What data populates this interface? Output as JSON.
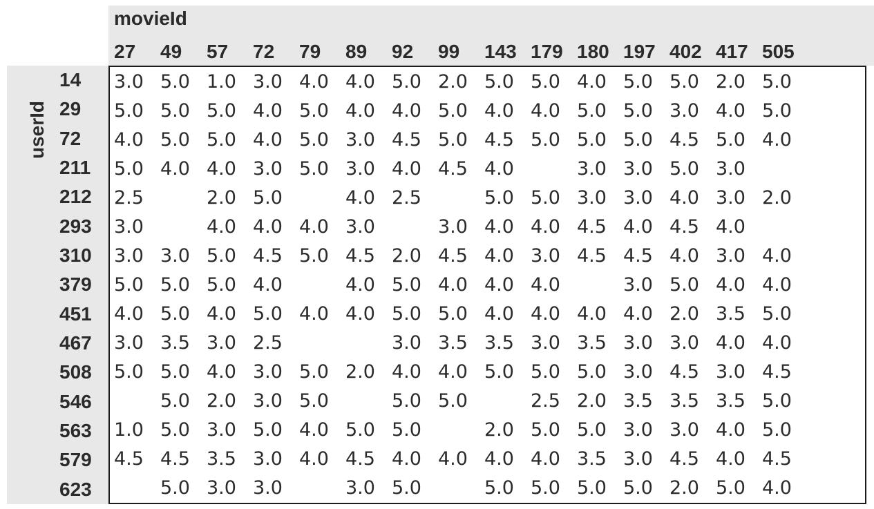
{
  "chart_data": {
    "type": "table",
    "title": "",
    "col_axis_label": "movieId",
    "row_axis_label": "userId",
    "columns": [
      "27",
      "49",
      "57",
      "72",
      "79",
      "89",
      "92",
      "99",
      "143",
      "179",
      "180",
      "197",
      "402",
      "417",
      "505"
    ],
    "row_ids": [
      "14",
      "29",
      "72",
      "211",
      "212",
      "293",
      "310",
      "379",
      "451",
      "467",
      "508",
      "546",
      "563",
      "579",
      "623"
    ],
    "rows": [
      [
        "3.0",
        "5.0",
        "1.0",
        "3.0",
        "4.0",
        "4.0",
        "5.0",
        "2.0",
        "5.0",
        "5.0",
        "4.0",
        "5.0",
        "5.0",
        "2.0",
        "5.0"
      ],
      [
        "5.0",
        "5.0",
        "5.0",
        "4.0",
        "5.0",
        "4.0",
        "4.0",
        "5.0",
        "4.0",
        "4.0",
        "5.0",
        "5.0",
        "3.0",
        "4.0",
        "5.0"
      ],
      [
        "4.0",
        "5.0",
        "5.0",
        "4.0",
        "5.0",
        "3.0",
        "4.5",
        "5.0",
        "4.5",
        "5.0",
        "5.0",
        "5.0",
        "4.5",
        "5.0",
        "4.0"
      ],
      [
        "5.0",
        "4.0",
        "4.0",
        "3.0",
        "5.0",
        "3.0",
        "4.0",
        "4.5",
        "4.0",
        null,
        "3.0",
        "3.0",
        "5.0",
        "3.0",
        null
      ],
      [
        "2.5",
        null,
        "2.0",
        "5.0",
        null,
        "4.0",
        "2.5",
        null,
        "5.0",
        "5.0",
        "3.0",
        "3.0",
        "4.0",
        "3.0",
        "2.0"
      ],
      [
        "3.0",
        null,
        "4.0",
        "4.0",
        "4.0",
        "3.0",
        null,
        "3.0",
        "4.0",
        "4.0",
        "4.5",
        "4.0",
        "4.5",
        "4.0",
        null
      ],
      [
        "3.0",
        "3.0",
        "5.0",
        "4.5",
        "5.0",
        "4.5",
        "2.0",
        "4.5",
        "4.0",
        "3.0",
        "4.5",
        "4.5",
        "4.0",
        "3.0",
        "4.0"
      ],
      [
        "5.0",
        "5.0",
        "5.0",
        "4.0",
        null,
        "4.0",
        "5.0",
        "4.0",
        "4.0",
        "4.0",
        null,
        "3.0",
        "5.0",
        "4.0",
        "4.0"
      ],
      [
        "4.0",
        "5.0",
        "4.0",
        "5.0",
        "4.0",
        "4.0",
        "5.0",
        "5.0",
        "4.0",
        "4.0",
        "4.0",
        "4.0",
        "2.0",
        "3.5",
        "5.0"
      ],
      [
        "3.0",
        "3.5",
        "3.0",
        "2.5",
        null,
        null,
        "3.0",
        "3.5",
        "3.5",
        "3.0",
        "3.5",
        "3.0",
        "3.0",
        "4.0",
        "4.0"
      ],
      [
        "5.0",
        "5.0",
        "4.0",
        "3.0",
        "5.0",
        "2.0",
        "4.0",
        "4.0",
        "5.0",
        "5.0",
        "5.0",
        "3.0",
        "4.5",
        "3.0",
        "4.5"
      ],
      [
        null,
        "5.0",
        "2.0",
        "3.0",
        "5.0",
        null,
        "5.0",
        "5.0",
        null,
        "2.5",
        "2.0",
        "3.5",
        "3.5",
        "3.5",
        "5.0"
      ],
      [
        "1.0",
        "5.0",
        "3.0",
        "5.0",
        "4.0",
        "5.0",
        "5.0",
        null,
        "2.0",
        "5.0",
        "5.0",
        "3.0",
        "3.0",
        "4.0",
        "5.0"
      ],
      [
        "4.5",
        "4.5",
        "3.5",
        "3.0",
        "4.0",
        "4.5",
        "4.0",
        "4.0",
        "4.0",
        "4.0",
        "3.5",
        "3.0",
        "4.5",
        "4.0",
        "4.5"
      ],
      [
        null,
        "5.0",
        "3.0",
        "3.0",
        null,
        "3.0",
        "5.0",
        null,
        "5.0",
        "5.0",
        "5.0",
        "5.0",
        "2.0",
        "5.0",
        "4.0"
      ]
    ],
    "legend": "none",
    "grid": "off"
  },
  "colors": {
    "header_bg": "#e8e8e8",
    "data_bg": "#ffffff",
    "text": "#2b2b2b",
    "border": "#1c1c1c"
  }
}
